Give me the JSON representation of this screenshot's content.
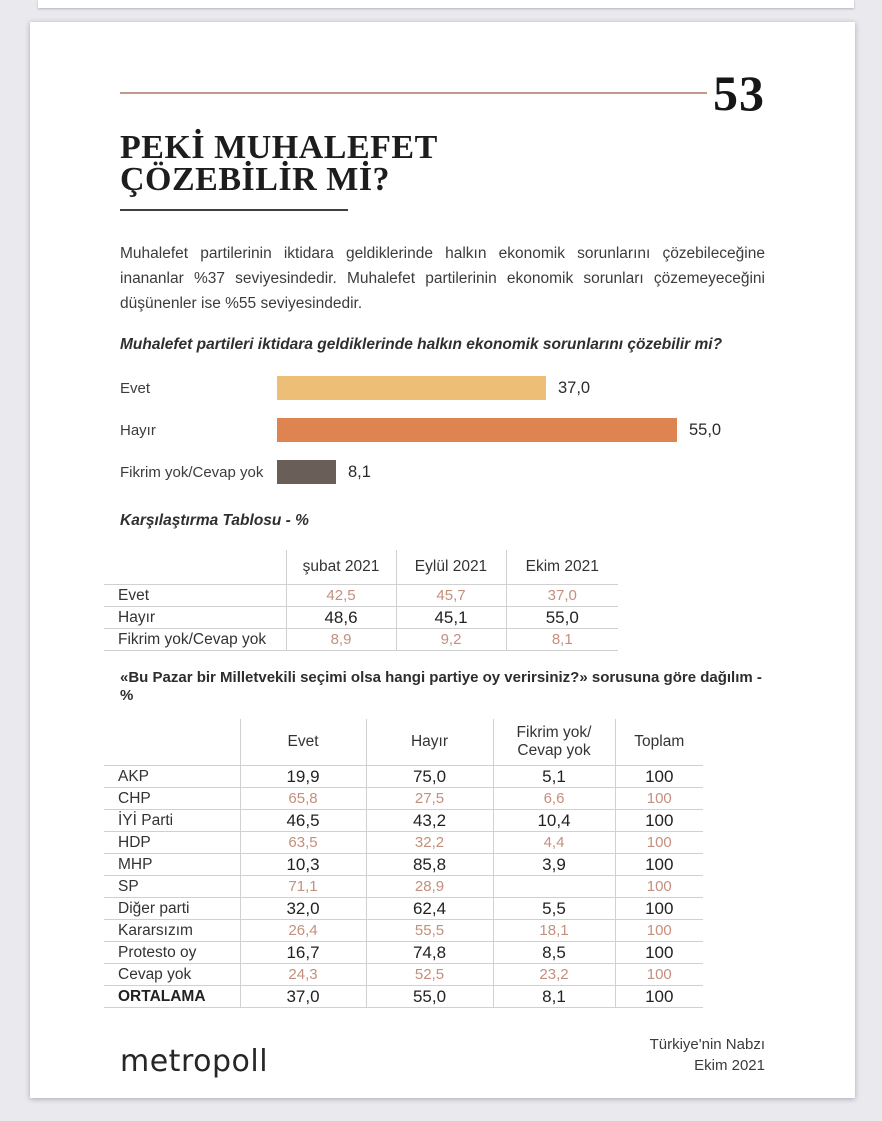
{
  "page": {
    "number": "53",
    "title_line1": "PEKİ MUHALEFET",
    "title_line2": "ÇÖZEBİLİR Mİ?",
    "intro": "Muhalefet partilerinin iktidara geldiklerinde halkın ekonomik sorunlarını çözebileceğine inananlar %37 seviyesindedir. Muhalefet partilerinin ekonomik sorunları çözemeyeceğini düşünenler ise %55 seviyesindedir.",
    "question": "Muhalefet partileri iktidara geldiklerinde halkın ekonomik sorunlarını çözebilir mi?"
  },
  "colors": {
    "accent_rule": "#c59a8b",
    "highlight_value": "#c48f7d"
  },
  "chart_data": {
    "type": "bar",
    "orientation": "horizontal",
    "title": "Muhalefet partileri iktidara geldiklerinde halkın ekonomik sorunlarını çözebilir mi?",
    "categories": [
      "Evet",
      "Hayır",
      "Fikrim yok/Cevap yok"
    ],
    "values": [
      37.0,
      55.0,
      8.1
    ],
    "value_labels": [
      "37,0",
      "55,0",
      "8,1"
    ],
    "colors": [
      "#edbe76",
      "#dd8450",
      "#6a5f58"
    ],
    "scale_max": 55,
    "xlim": [
      0,
      60
    ],
    "grid": false,
    "legend": false
  },
  "comparison_table": {
    "title": "Karşılaştırma Tablosu - %",
    "columns": [
      "",
      "şubat 2021",
      "Eylül 2021",
      "Ekim 2021"
    ],
    "rows": [
      {
        "label": "Evet",
        "values": [
          "42,5",
          "45,7",
          "37,0"
        ],
        "highlight": true
      },
      {
        "label": "Hayır",
        "values": [
          "48,6",
          "45,1",
          "55,0"
        ],
        "highlight": false
      },
      {
        "label": "Fikrim yok/Cevap yok",
        "values": [
          "8,9",
          "9,2",
          "8,1"
        ],
        "highlight": true
      }
    ]
  },
  "party_table": {
    "heading": "«Bu Pazar bir Milletvekili seçimi olsa hangi partiye oy verirsiniz?» sorusuna göre dağılım - %",
    "columns": [
      "",
      "Evet",
      "Hayır",
      "Fikrim yok/ Cevap yok",
      "Toplam"
    ],
    "rows": [
      {
        "label": "AKP",
        "values": [
          "19,9",
          "75,0",
          "5,1",
          "100"
        ],
        "highlight": false
      },
      {
        "label": "CHP",
        "values": [
          "65,8",
          "27,5",
          "6,6",
          "100"
        ],
        "highlight": true
      },
      {
        "label": "İYİ Parti",
        "values": [
          "46,5",
          "43,2",
          "10,4",
          "100"
        ],
        "highlight": false
      },
      {
        "label": "HDP",
        "values": [
          "63,5",
          "32,2",
          "4,4",
          "100"
        ],
        "highlight": true
      },
      {
        "label": "MHP",
        "values": [
          "10,3",
          "85,8",
          "3,9",
          "100"
        ],
        "highlight": false
      },
      {
        "label": "SP",
        "values": [
          "71,1",
          "28,9",
          "",
          "100"
        ],
        "highlight": true
      },
      {
        "label": "Diğer parti",
        "values": [
          "32,0",
          "62,4",
          "5,5",
          "100"
        ],
        "highlight": false
      },
      {
        "label": "Kararsızım",
        "values": [
          "26,4",
          "55,5",
          "18,1",
          "100"
        ],
        "highlight": true
      },
      {
        "label": "Protesto oy",
        "values": [
          "16,7",
          "74,8",
          "8,5",
          "100"
        ],
        "highlight": false
      },
      {
        "label": "Cevap yok",
        "values": [
          "24,3",
          "52,5",
          "23,2",
          "100"
        ],
        "highlight": true
      },
      {
        "label": "ORTALAMA",
        "values": [
          "37,0",
          "55,0",
          "8,1",
          "100"
        ],
        "highlight": false,
        "bold": true
      }
    ]
  },
  "footer": {
    "logo": "metropoll",
    "right_line1": "Türkiye'nin Nabzı",
    "right_line2": "Ekim 2021"
  }
}
